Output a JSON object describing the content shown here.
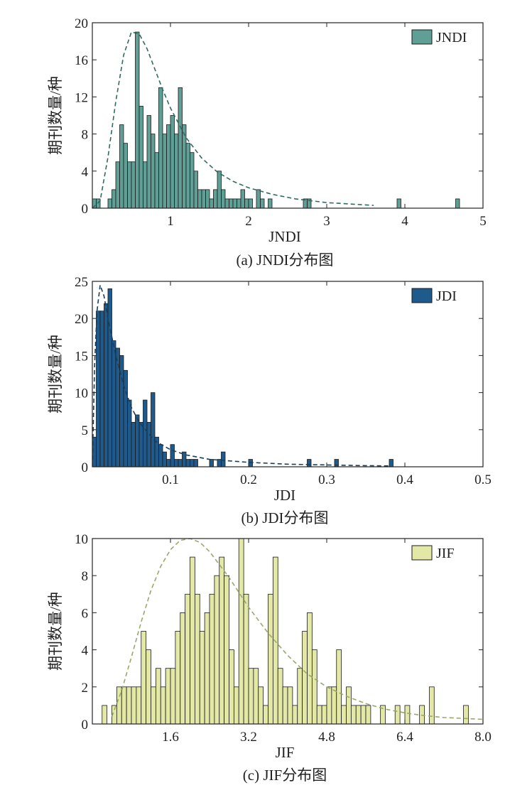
{
  "charts": [
    {
      "id": "jndi",
      "caption": "(a) JNDI分布图",
      "ylabel": "期刊数量/种",
      "xlabel": "JNDI",
      "legend": "JNDI",
      "legend_position": "top-right",
      "bar_color": "#5f9f96",
      "curve_color": "#2f6b60",
      "chart_data": {
        "type": "bar",
        "bin_width": 0.05,
        "xlim": [
          0.0,
          5.0
        ],
        "ylim": [
          0,
          20
        ],
        "xticks": [
          1.0,
          2.0,
          3.0,
          4.0,
          5.0
        ],
        "yticks": [
          0,
          4,
          8,
          12,
          16,
          20
        ],
        "bins": [
          {
            "x": 0.0,
            "y": 1
          },
          {
            "x": 0.05,
            "y": 1
          },
          {
            "x": 0.2,
            "y": 1
          },
          {
            "x": 0.25,
            "y": 2
          },
          {
            "x": 0.3,
            "y": 5
          },
          {
            "x": 0.35,
            "y": 9
          },
          {
            "x": 0.4,
            "y": 7
          },
          {
            "x": 0.45,
            "y": 5
          },
          {
            "x": 0.5,
            "y": 5
          },
          {
            "x": 0.55,
            "y": 19
          },
          {
            "x": 0.6,
            "y": 11
          },
          {
            "x": 0.65,
            "y": 5
          },
          {
            "x": 0.7,
            "y": 10
          },
          {
            "x": 0.75,
            "y": 8
          },
          {
            "x": 0.8,
            "y": 6
          },
          {
            "x": 0.85,
            "y": 13
          },
          {
            "x": 0.9,
            "y": 8
          },
          {
            "x": 0.95,
            "y": 9
          },
          {
            "x": 1.0,
            "y": 10
          },
          {
            "x": 1.05,
            "y": 8
          },
          {
            "x": 1.1,
            "y": 13
          },
          {
            "x": 1.15,
            "y": 9
          },
          {
            "x": 1.2,
            "y": 7
          },
          {
            "x": 1.25,
            "y": 6
          },
          {
            "x": 1.3,
            "y": 4
          },
          {
            "x": 1.35,
            "y": 2
          },
          {
            "x": 1.4,
            "y": 2
          },
          {
            "x": 1.45,
            "y": 2
          },
          {
            "x": 1.5,
            "y": 1
          },
          {
            "x": 1.55,
            "y": 2
          },
          {
            "x": 1.6,
            "y": 4
          },
          {
            "x": 1.65,
            "y": 2
          },
          {
            "x": 1.7,
            "y": 1
          },
          {
            "x": 1.75,
            "y": 1
          },
          {
            "x": 1.8,
            "y": 1
          },
          {
            "x": 1.85,
            "y": 1
          },
          {
            "x": 1.9,
            "y": 2
          },
          {
            "x": 1.95,
            "y": 1
          },
          {
            "x": 2.0,
            "y": 1
          },
          {
            "x": 2.1,
            "y": 2
          },
          {
            "x": 2.15,
            "y": 1
          },
          {
            "x": 2.25,
            "y": 1
          },
          {
            "x": 2.7,
            "y": 1
          },
          {
            "x": 2.75,
            "y": 1
          },
          {
            "x": 3.9,
            "y": 1
          },
          {
            "x": 4.65,
            "y": 1
          }
        ],
        "fit_curve": [
          [
            0.0,
            0.0
          ],
          [
            0.1,
            0.8
          ],
          [
            0.2,
            5.5
          ],
          [
            0.3,
            11.5
          ],
          [
            0.4,
            16.5
          ],
          [
            0.5,
            19.0
          ],
          [
            0.6,
            18.8
          ],
          [
            0.7,
            17.2
          ],
          [
            0.8,
            15.0
          ],
          [
            0.9,
            12.8
          ],
          [
            1.0,
            10.8
          ],
          [
            1.2,
            7.6
          ],
          [
            1.4,
            5.4
          ],
          [
            1.6,
            3.9
          ],
          [
            1.8,
            2.9
          ],
          [
            2.0,
            2.2
          ],
          [
            2.3,
            1.5
          ],
          [
            2.6,
            1.0
          ],
          [
            3.0,
            0.6
          ],
          [
            3.5,
            0.35
          ],
          [
            3.6,
            0.3
          ]
        ]
      }
    },
    {
      "id": "jdi",
      "caption": "(b) JDI分布图",
      "ylabel": "期刊数量/种",
      "xlabel": "JDI",
      "legend": "JDI",
      "legend_position": "top-right",
      "bar_color": "#1e5a8c",
      "curve_color": "#1b3e5a",
      "chart_data": {
        "type": "bar",
        "bin_width": 0.005,
        "xlim": [
          0.0,
          0.5
        ],
        "ylim": [
          0,
          25
        ],
        "xticks": [
          0.1,
          0.2,
          0.3,
          0.4,
          0.5
        ],
        "yticks": [
          0,
          5,
          10,
          15,
          20,
          25
        ],
        "bins": [
          {
            "x": 0.0,
            "y": 4
          },
          {
            "x": 0.005,
            "y": 21
          },
          {
            "x": 0.01,
            "y": 21
          },
          {
            "x": 0.015,
            "y": 22
          },
          {
            "x": 0.02,
            "y": 24
          },
          {
            "x": 0.025,
            "y": 17
          },
          {
            "x": 0.03,
            "y": 16
          },
          {
            "x": 0.035,
            "y": 15
          },
          {
            "x": 0.04,
            "y": 13
          },
          {
            "x": 0.045,
            "y": 9
          },
          {
            "x": 0.05,
            "y": 6
          },
          {
            "x": 0.055,
            "y": 7
          },
          {
            "x": 0.06,
            "y": 6
          },
          {
            "x": 0.065,
            "y": 9
          },
          {
            "x": 0.07,
            "y": 6
          },
          {
            "x": 0.075,
            "y": 10
          },
          {
            "x": 0.08,
            "y": 4
          },
          {
            "x": 0.085,
            "y": 3
          },
          {
            "x": 0.09,
            "y": 2
          },
          {
            "x": 0.095,
            "y": 1
          },
          {
            "x": 0.1,
            "y": 3
          },
          {
            "x": 0.105,
            "y": 1
          },
          {
            "x": 0.11,
            "y": 1
          },
          {
            "x": 0.115,
            "y": 2
          },
          {
            "x": 0.12,
            "y": 1
          },
          {
            "x": 0.125,
            "y": 1
          },
          {
            "x": 0.13,
            "y": 1
          },
          {
            "x": 0.15,
            "y": 1
          },
          {
            "x": 0.16,
            "y": 1
          },
          {
            "x": 0.165,
            "y": 2
          },
          {
            "x": 0.2,
            "y": 1
          },
          {
            "x": 0.275,
            "y": 1
          },
          {
            "x": 0.31,
            "y": 1
          },
          {
            "x": 0.38,
            "y": 1
          }
        ],
        "fit_curve": [
          [
            0.0,
            0.0
          ],
          [
            0.003,
            14.0
          ],
          [
            0.006,
            21.0
          ],
          [
            0.01,
            24.5
          ],
          [
            0.015,
            23.0
          ],
          [
            0.02,
            20.0
          ],
          [
            0.03,
            15.0
          ],
          [
            0.04,
            11.0
          ],
          [
            0.05,
            8.0
          ],
          [
            0.06,
            6.0
          ],
          [
            0.08,
            3.5
          ],
          [
            0.1,
            2.3
          ],
          [
            0.12,
            1.6
          ],
          [
            0.15,
            1.0
          ],
          [
            0.2,
            0.6
          ],
          [
            0.25,
            0.35
          ],
          [
            0.3,
            0.25
          ],
          [
            0.35,
            0.15
          ],
          [
            0.38,
            0.12
          ]
        ]
      }
    },
    {
      "id": "jif",
      "caption": "(c) JIF分布图",
      "ylabel": "期刊数量/种",
      "xlabel": "JIF",
      "legend": "JIF",
      "legend_position": "top-right",
      "bar_color": "#e3e8a6",
      "curve_color": "#9aa86a",
      "chart_data": {
        "type": "bar",
        "bin_width": 0.1,
        "xlim": [
          0.0,
          8.0
        ],
        "ylim": [
          0,
          10
        ],
        "xticks": [
          1.6,
          3.2,
          4.8,
          6.4,
          8.0
        ],
        "yticks": [
          0,
          2,
          4,
          6,
          8,
          10
        ],
        "bins": [
          {
            "x": 0.2,
            "y": 1
          },
          {
            "x": 0.4,
            "y": 1
          },
          {
            "x": 0.5,
            "y": 2
          },
          {
            "x": 0.6,
            "y": 2
          },
          {
            "x": 0.7,
            "y": 2
          },
          {
            "x": 0.8,
            "y": 2
          },
          {
            "x": 0.9,
            "y": 2
          },
          {
            "x": 1.0,
            "y": 5
          },
          {
            "x": 1.1,
            "y": 4
          },
          {
            "x": 1.2,
            "y": 2
          },
          {
            "x": 1.3,
            "y": 3
          },
          {
            "x": 1.4,
            "y": 2
          },
          {
            "x": 1.5,
            "y": 3
          },
          {
            "x": 1.6,
            "y": 3
          },
          {
            "x": 1.7,
            "y": 5
          },
          {
            "x": 1.8,
            "y": 6
          },
          {
            "x": 1.9,
            "y": 7
          },
          {
            "x": 2.0,
            "y": 9
          },
          {
            "x": 2.1,
            "y": 7
          },
          {
            "x": 2.2,
            "y": 5
          },
          {
            "x": 2.3,
            "y": 6
          },
          {
            "x": 2.4,
            "y": 7
          },
          {
            "x": 2.5,
            "y": 8
          },
          {
            "x": 2.6,
            "y": 9
          },
          {
            "x": 2.7,
            "y": 8
          },
          {
            "x": 2.8,
            "y": 4
          },
          {
            "x": 2.9,
            "y": 2
          },
          {
            "x": 3.0,
            "y": 10
          },
          {
            "x": 3.1,
            "y": 7
          },
          {
            "x": 3.2,
            "y": 3
          },
          {
            "x": 3.3,
            "y": 3
          },
          {
            "x": 3.4,
            "y": 2
          },
          {
            "x": 3.5,
            "y": 1
          },
          {
            "x": 3.6,
            "y": 7
          },
          {
            "x": 3.7,
            "y": 9
          },
          {
            "x": 3.8,
            "y": 3
          },
          {
            "x": 3.9,
            "y": 2
          },
          {
            "x": 4.0,
            "y": 2
          },
          {
            "x": 4.1,
            "y": 1
          },
          {
            "x": 4.2,
            "y": 3
          },
          {
            "x": 4.3,
            "y": 5
          },
          {
            "x": 4.4,
            "y": 6
          },
          {
            "x": 4.5,
            "y": 4
          },
          {
            "x": 4.6,
            "y": 1
          },
          {
            "x": 4.7,
            "y": 1
          },
          {
            "x": 4.8,
            "y": 2
          },
          {
            "x": 4.9,
            "y": 2
          },
          {
            "x": 5.0,
            "y": 4
          },
          {
            "x": 5.1,
            "y": 1
          },
          {
            "x": 5.2,
            "y": 2
          },
          {
            "x": 5.3,
            "y": 1
          },
          {
            "x": 5.4,
            "y": 1
          },
          {
            "x": 5.5,
            "y": 1
          },
          {
            "x": 5.6,
            "y": 1
          },
          {
            "x": 5.9,
            "y": 1
          },
          {
            "x": 6.2,
            "y": 1
          },
          {
            "x": 6.4,
            "y": 1
          },
          {
            "x": 6.7,
            "y": 1
          },
          {
            "x": 6.9,
            "y": 2
          },
          {
            "x": 7.6,
            "y": 1
          },
          {
            "x": 8.0,
            "y": 1
          }
        ],
        "fit_curve": [
          [
            0.4,
            0.4
          ],
          [
            0.6,
            1.8
          ],
          [
            0.8,
            3.6
          ],
          [
            1.0,
            5.5
          ],
          [
            1.2,
            7.2
          ],
          [
            1.4,
            8.5
          ],
          [
            1.6,
            9.4
          ],
          [
            1.8,
            9.9
          ],
          [
            2.0,
            10.0
          ],
          [
            2.2,
            9.8
          ],
          [
            2.4,
            9.3
          ],
          [
            2.6,
            8.6
          ],
          [
            2.8,
            7.9
          ],
          [
            3.0,
            7.1
          ],
          [
            3.2,
            6.3
          ],
          [
            3.6,
            4.9
          ],
          [
            4.0,
            3.7
          ],
          [
            4.4,
            2.7
          ],
          [
            4.8,
            2.0
          ],
          [
            5.2,
            1.5
          ],
          [
            5.6,
            1.1
          ],
          [
            6.0,
            0.8
          ],
          [
            6.4,
            0.6
          ],
          [
            6.8,
            0.45
          ],
          [
            7.2,
            0.35
          ],
          [
            7.6,
            0.3
          ],
          [
            8.0,
            0.25
          ]
        ]
      }
    }
  ]
}
